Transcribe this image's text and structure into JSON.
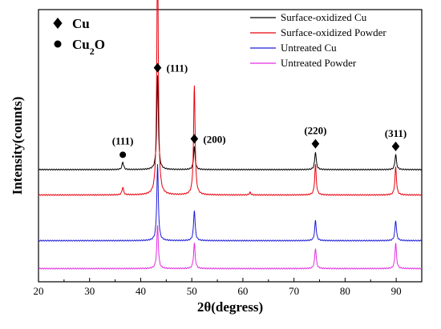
{
  "chart_data": {
    "type": "line",
    "title": "",
    "xlabel": "2θ(degress)",
    "ylabel": "Intensity(counts)",
    "xlim": [
      20,
      95
    ],
    "xticks": [
      20,
      30,
      40,
      50,
      60,
      70,
      80,
      90
    ],
    "y_ticks_shown": false,
    "grid": false,
    "legend_position": "top-right",
    "phase_markers": [
      {
        "symbol": "diamond",
        "label": "Cu"
      },
      {
        "symbol": "circle",
        "label": "Cu2O",
        "label_main": "Cu",
        "label_sub": "2",
        "label_tail": "O"
      }
    ],
    "peak_annotations": [
      {
        "x": 36.5,
        "label": "(111)",
        "marker": "circle",
        "phase": "Cu2O"
      },
      {
        "x": 43.3,
        "label": "(111)",
        "marker": "diamond",
        "phase": "Cu"
      },
      {
        "x": 50.5,
        "label": "(200)",
        "marker": "diamond",
        "phase": "Cu"
      },
      {
        "x": 74.2,
        "label": "(220)",
        "marker": "diamond",
        "phase": "Cu"
      },
      {
        "x": 89.9,
        "label": "(311)",
        "marker": "diamond",
        "phase": "Cu"
      }
    ],
    "series": [
      {
        "name": "Surface-oxidized Cu",
        "color": "#000000",
        "baseline": 0.42,
        "peaks": [
          {
            "x": 36.5,
            "height": 0.03
          },
          {
            "x": 43.3,
            "height": 0.37
          },
          {
            "x": 50.5,
            "height": 0.09
          },
          {
            "x": 74.2,
            "height": 0.07
          },
          {
            "x": 89.9,
            "height": 0.06
          }
        ]
      },
      {
        "name": "Surface-oxidized Powder",
        "color": "#e8000b",
        "baseline": 0.32,
        "peaks": [
          {
            "x": 36.5,
            "height": 0.03
          },
          {
            "x": 43.3,
            "height": 0.96
          },
          {
            "x": 50.5,
            "height": 0.43
          },
          {
            "x": 61.4,
            "height": 0.01
          },
          {
            "x": 74.2,
            "height": 0.12
          },
          {
            "x": 89.9,
            "height": 0.11
          }
        ]
      },
      {
        "name": "Untreated Cu",
        "color": "#1c1cd6",
        "baseline": 0.14,
        "peaks": [
          {
            "x": 43.3,
            "height": 0.3
          },
          {
            "x": 50.5,
            "height": 0.12
          },
          {
            "x": 74.2,
            "height": 0.08
          },
          {
            "x": 89.9,
            "height": 0.08
          }
        ]
      },
      {
        "name": "Untreated Powder",
        "color": "#e22ee0",
        "baseline": 0.03,
        "peaks": [
          {
            "x": 43.3,
            "height": 0.17
          },
          {
            "x": 50.5,
            "height": 0.1
          },
          {
            "x": 74.2,
            "height": 0.08
          },
          {
            "x": 89.9,
            "height": 0.1
          }
        ]
      }
    ]
  }
}
